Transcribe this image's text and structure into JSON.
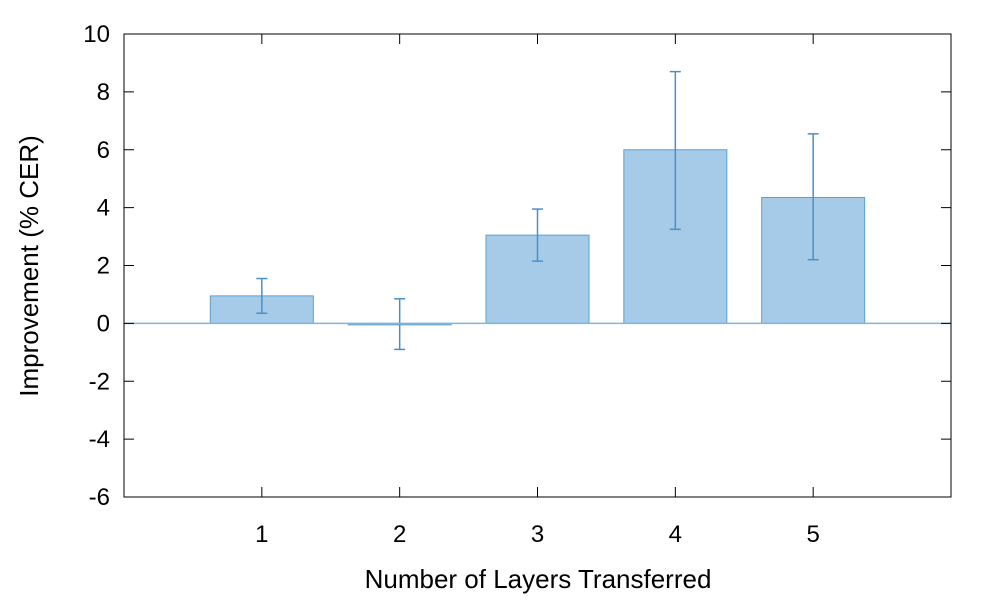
{
  "chart_data": {
    "type": "bar",
    "title": "",
    "xlabel": "Number of Layers Transferred",
    "ylabel": "Improvement (% CER)",
    "categories": [
      "1",
      "2",
      "3",
      "4",
      "5"
    ],
    "x": [
      1,
      2,
      3,
      4,
      5
    ],
    "xlim": [
      0,
      6
    ],
    "values": [
      0.95,
      -0.05,
      3.05,
      6.0,
      4.35
    ],
    "error_low": [
      0.35,
      -0.9,
      2.15,
      3.25,
      2.2
    ],
    "error_high": [
      1.55,
      0.85,
      3.95,
      8.7,
      6.55
    ],
    "ylim": [
      -6,
      10
    ],
    "yticks": [
      -6,
      -4,
      -2,
      0,
      2,
      4,
      6,
      8,
      10
    ],
    "grid": false,
    "legend": "none",
    "colors": {
      "bar_fill": "#a6cbe9",
      "bar_stroke": "#5b9fd1",
      "error_bar": "#4a90c8",
      "zero_line": "#7fb8df",
      "frame": "#000000"
    }
  }
}
